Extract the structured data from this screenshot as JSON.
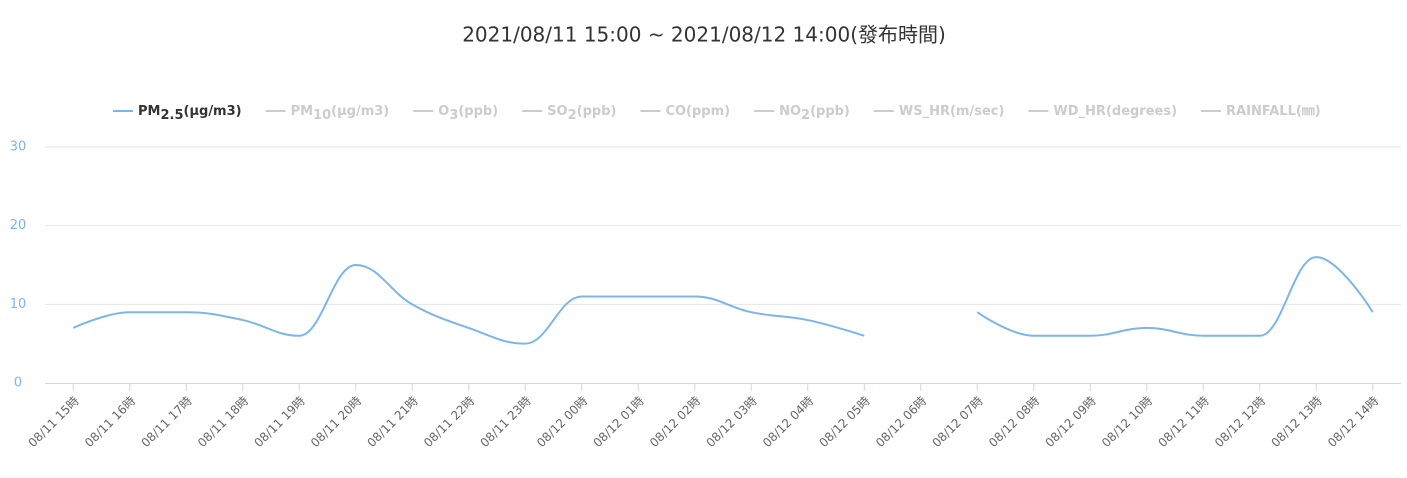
{
  "chart_data": {
    "type": "line",
    "title": "2021/08/11 15:00 ~ 2021/08/12 14:00(發布時間)",
    "categories": [
      "08/11 15時",
      "08/11 16時",
      "08/11 17時",
      "08/11 18時",
      "08/11 19時",
      "08/11 20時",
      "08/11 21時",
      "08/11 22時",
      "08/11 23時",
      "08/12 00時",
      "08/12 01時",
      "08/12 02時",
      "08/12 03時",
      "08/12 04時",
      "08/12 05時",
      "08/12 06時",
      "08/12 07時",
      "08/12 08時",
      "08/12 09時",
      "08/12 10時",
      "08/12 11時",
      "08/12 12時",
      "08/12 13時",
      "08/12 14時"
    ],
    "series": [
      {
        "name": [
          "PM",
          "2.5",
          "(μg/m3)"
        ],
        "color": "#7cb5ec",
        "values": [
          7,
          9,
          9,
          8,
          6,
          15,
          10,
          7,
          5,
          11,
          11,
          11,
          9,
          8,
          6,
          null,
          9,
          6,
          6,
          7,
          6,
          6,
          16,
          9
        ]
      }
    ],
    "hidden_legend": [
      [
        "PM",
        "10",
        "(μg/m3)"
      ],
      [
        "O",
        "3",
        "(ppb)"
      ],
      [
        "SO",
        "2",
        "(ppb)"
      ],
      [
        "CO(ppm)"
      ],
      [
        "NO",
        "2",
        "(ppb)"
      ],
      [
        "WS_HR(m/sec)"
      ],
      [
        "WD_HR(degrees)"
      ],
      [
        "RAINFALL(㎜)"
      ]
    ],
    "ylim": [
      0,
      30
    ],
    "yticks": [
      0,
      10,
      20,
      30
    ],
    "grid": true
  }
}
